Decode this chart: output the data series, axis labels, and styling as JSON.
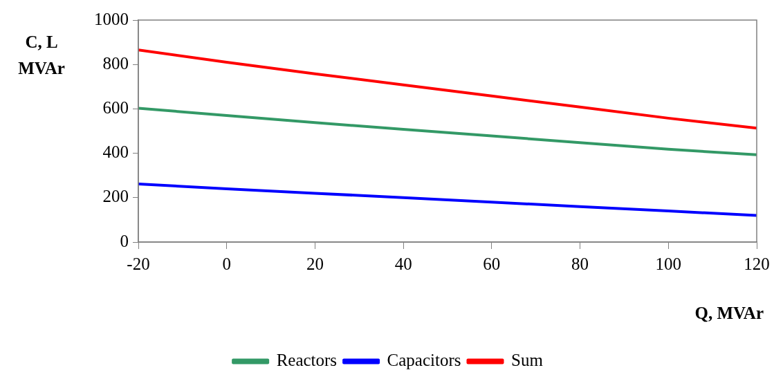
{
  "chart_data": {
    "type": "line",
    "xlabel": "Q, MVAr",
    "ylabel": "C, L\nMVAr",
    "x": [
      -20,
      0,
      20,
      40,
      60,
      80,
      100,
      120
    ],
    "series": [
      {
        "name": "Reactors",
        "color": "#339966",
        "values": [
          603,
          570,
          538,
          508,
          478,
          448,
          418,
          393
        ]
      },
      {
        "name": "Capacitors",
        "color": "#0000ff",
        "values": [
          262,
          240,
          220,
          200,
          180,
          160,
          140,
          120
        ]
      },
      {
        "name": "Sum",
        "color": "#ff0000",
        "values": [
          865,
          810,
          758,
          708,
          658,
          608,
          558,
          513
        ]
      }
    ],
    "xlim": [
      -20,
      120
    ],
    "xticks": [
      -20,
      0,
      20,
      40,
      60,
      80,
      100,
      120
    ],
    "ylim": [
      0,
      1000
    ],
    "yticks": [
      0,
      200,
      400,
      600,
      800,
      1000
    ],
    "grid": false,
    "legend": "bottom",
    "marker": "none",
    "line_style": "solid"
  }
}
